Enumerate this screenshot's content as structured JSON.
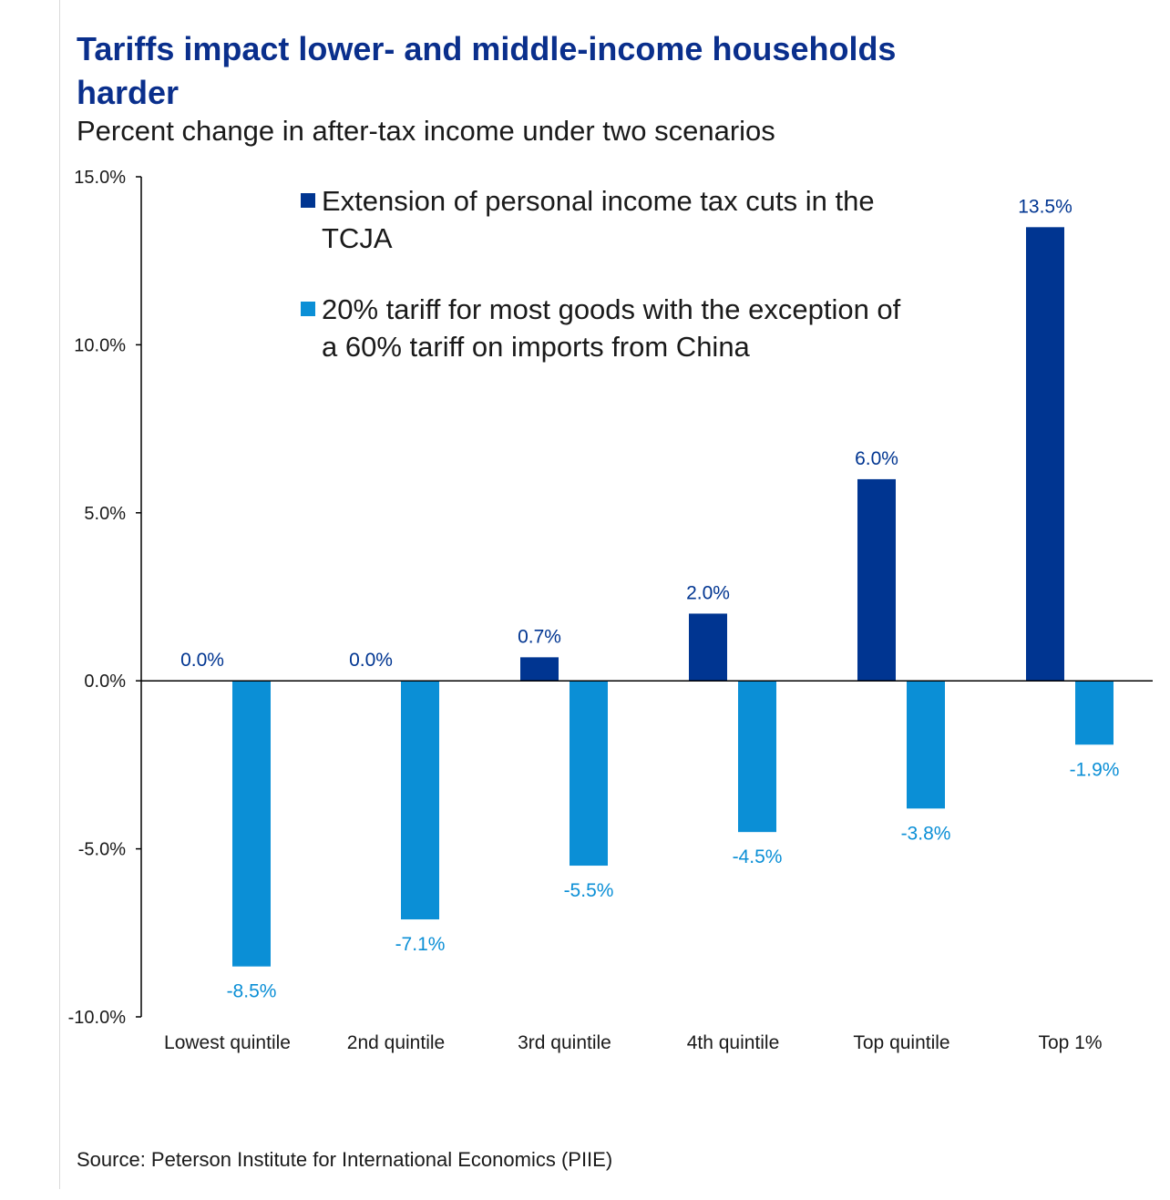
{
  "title": "Tariffs impact lower- and middle-income households harder",
  "subtitle": "Percent change in after-tax income under two scenarios",
  "source": "Source: Peterson Institute for International Economics (PIIE)",
  "colors": {
    "tcja": "#003591",
    "tariff": "#0b8fd6",
    "axis": "#000000",
    "title": "#0a2f8c"
  },
  "chart_data": {
    "type": "bar",
    "categories": [
      "Lowest quintile",
      "2nd quintile",
      "3rd quintile",
      "4th quintile",
      "Top quintile",
      "Top 1%"
    ],
    "series": [
      {
        "name": "Extension of personal income tax cuts in the TCJA",
        "values": [
          0.0,
          0.0,
          0.7,
          2.0,
          6.0,
          13.5
        ],
        "labels": [
          "0.0%",
          "0.0%",
          "0.7%",
          "2.0%",
          "6.0%",
          "13.5%"
        ]
      },
      {
        "name": "20% tariff for most goods with the exception of a 60% tariff on imports from China",
        "values": [
          -8.5,
          -7.1,
          -5.5,
          -4.5,
          -3.8,
          -1.9
        ],
        "labels": [
          "-8.5%",
          "-7.1%",
          "-5.5%",
          "-4.5%",
          "-3.8%",
          "-1.9%"
        ]
      }
    ],
    "ylim": [
      -10,
      15
    ],
    "yticks": [
      15,
      10,
      5,
      0,
      -5,
      -10
    ],
    "ytick_labels": [
      "15.0%",
      "10.0%",
      "5.0%",
      "0.0%",
      "-5.0%",
      "-10.0%"
    ],
    "legend_position": "top",
    "grid": false
  }
}
